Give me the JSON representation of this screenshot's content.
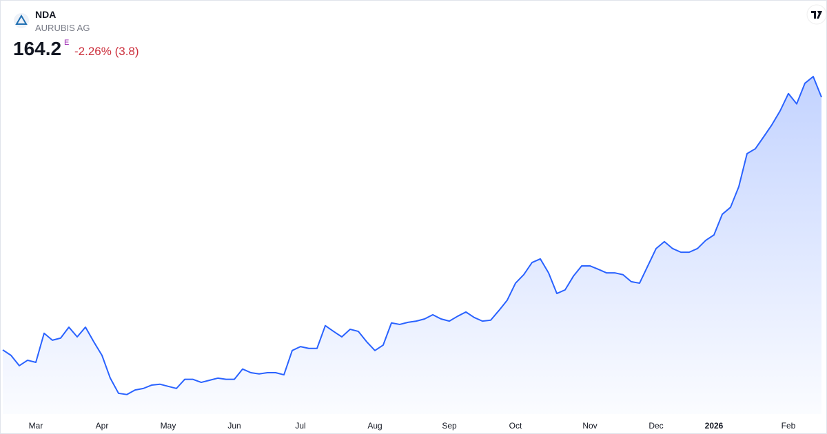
{
  "chart_data": {
    "type": "line",
    "symbol": "NDA",
    "name": "AURUBIS AG",
    "price": "164.2",
    "price_flag": "E",
    "change": "-2.26% (3.8)",
    "color": "#2962ff",
    "change_color": "#cc2f3c",
    "ylim": [
      60,
      196
    ],
    "categories": [
      null,
      null,
      null,
      null,
      "Mar",
      null,
      null,
      null,
      null,
      null,
      null,
      null,
      "Apr",
      null,
      null,
      null,
      null,
      null,
      null,
      null,
      "May",
      null,
      null,
      null,
      null,
      null,
      null,
      null,
      "Jun",
      null,
      null,
      null,
      null,
      null,
      null,
      null,
      "Jul",
      null,
      null,
      null,
      null,
      null,
      null,
      null,
      null,
      "Aug",
      null,
      null,
      null,
      null,
      null,
      null,
      null,
      null,
      "Sep",
      null,
      null,
      null,
      null,
      null,
      null,
      null,
      "Oct",
      null,
      null,
      null,
      null,
      null,
      null,
      null,
      null,
      "Nov",
      null,
      null,
      null,
      null,
      null,
      null,
      null,
      "Dec",
      null,
      null,
      null,
      null,
      null,
      null,
      "2026",
      null,
      null,
      null,
      null,
      null,
      null,
      null,
      null,
      "Feb",
      null,
      null,
      null,
      null
    ],
    "values": [
      80.9,
      79.1,
      75.7,
      77.5,
      76.8,
      86.4,
      84.1,
      84.8,
      88.4,
      85.2,
      88.4,
      83.6,
      79.1,
      71.6,
      66.6,
      66.2,
      67.7,
      68.2,
      69.3,
      69.6,
      68.9,
      68.2,
      71.2,
      71.2,
      70.2,
      70.9,
      71.6,
      71.2,
      71.2,
      74.6,
      73.4,
      73.0,
      73.4,
      73.4,
      72.7,
      80.7,
      82.0,
      81.4,
      81.4,
      88.9,
      87.0,
      85.2,
      87.7,
      87.0,
      83.6,
      80.7,
      82.5,
      89.8,
      89.3,
      90.0,
      90.4,
      91.1,
      92.5,
      91.1,
      90.4,
      92.0,
      93.4,
      91.6,
      90.4,
      90.7,
      93.9,
      97.3,
      102.9,
      105.7,
      109.7,
      110.9,
      106.3,
      99.5,
      100.7,
      105.2,
      108.6,
      108.6,
      107.5,
      106.3,
      106.3,
      105.7,
      103.4,
      102.9,
      108.6,
      114.3,
      116.6,
      114.3,
      113.1,
      113.1,
      114.3,
      117.0,
      118.8,
      125.6,
      127.9,
      134.7,
      145.6,
      147.2,
      151.1,
      155.1,
      159.7,
      165.4,
      162.0,
      168.8,
      171.0,
      164.2
    ]
  }
}
